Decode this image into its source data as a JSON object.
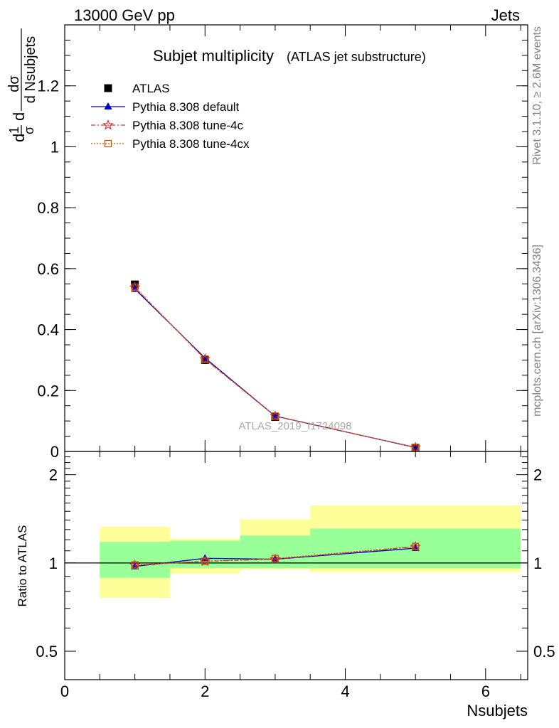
{
  "header": {
    "left": "13000 GeV pp",
    "right": "Jets"
  },
  "side": {
    "top": "Rivet 3.1.10, ≥ 2.6M events",
    "bottom": "mcplots.cern.ch [arXiv:1306.3436]"
  },
  "watermark": "ATLAS_2019_I1724098",
  "chart_data": [
    {
      "type": "line",
      "title": "Subjet multiplicity",
      "subtitle": "(ATLAS jet substructure)",
      "ylabel_top": "dσ",
      "ylabel_bottom": "d Nsubjets",
      "ylabel_prefix_num": "1",
      "ylabel_prefix_den": "σ",
      "ylabel_prefix_d": "d",
      "xlim": [
        0,
        6.6
      ],
      "ylim": [
        0,
        1.4
      ],
      "yticks": [
        "0",
        "0.2",
        "0.4",
        "0.6",
        "0.8",
        "1",
        "1.2"
      ],
      "legend_placement": "top-left",
      "series": [
        {
          "name": "ATLAS",
          "x": [
            1,
            2,
            3,
            5
          ],
          "values": [
            0.548,
            0.3,
            0.113,
            0.012
          ],
          "color": "#000000",
          "marker": "square"
        },
        {
          "name": "Pythia 8.308 default",
          "x": [
            1,
            2,
            3,
            5
          ],
          "values": [
            0.533,
            0.307,
            0.116,
            0.013
          ],
          "color": "#0000cc",
          "marker": "triangle"
        },
        {
          "name": "Pythia 8.308 tune-4c",
          "x": [
            1,
            2,
            3,
            5
          ],
          "values": [
            0.538,
            0.303,
            0.116,
            0.013
          ],
          "color": "#e03030",
          "marker": "star"
        },
        {
          "name": "Pythia 8.308 tune-4cx",
          "x": [
            1,
            2,
            3,
            5
          ],
          "values": [
            0.539,
            0.303,
            0.116,
            0.013
          ],
          "color": "#cc5500",
          "marker": "open-square"
        }
      ]
    },
    {
      "type": "line",
      "ylabel": "Ratio to ATLAS",
      "xlabel": "Nsubjets",
      "xlim": [
        0,
        6.6
      ],
      "ylim": [
        0.4,
        2.4
      ],
      "yscale": "log",
      "yticks": [
        "0.5",
        "1",
        "2"
      ],
      "xticks": [
        "0",
        "2",
        "4",
        "6"
      ],
      "bands": [
        {
          "xlo": 0.5,
          "xhi": 1.5,
          "yellow": [
            0.76,
            1.33
          ],
          "green": [
            0.89,
            1.18
          ]
        },
        {
          "xlo": 1.5,
          "xhi": 2.5,
          "yellow": [
            0.92,
            1.21
          ],
          "green": [
            0.96,
            1.19
          ]
        },
        {
          "xlo": 2.5,
          "xhi": 3.5,
          "yellow": [
            0.95,
            1.41
          ],
          "green": [
            0.96,
            1.24
          ]
        },
        {
          "xlo": 3.5,
          "xhi": 6.5,
          "yellow": [
            0.93,
            1.57
          ],
          "green": [
            0.96,
            1.31
          ]
        }
      ],
      "series": [
        {
          "name": "Pythia 8.308 default",
          "x": [
            1,
            2,
            3,
            5
          ],
          "values": [
            0.973,
            1.037,
            1.03,
            1.123
          ],
          "color": "#0000cc",
          "marker": "triangle"
        },
        {
          "name": "Pythia 8.308 tune-4c",
          "x": [
            1,
            2,
            3,
            5
          ],
          "values": [
            0.982,
            1.013,
            1.03,
            1.135
          ],
          "color": "#e03030",
          "marker": "star"
        },
        {
          "name": "Pythia 8.308 tune-4cx",
          "x": [
            1,
            2,
            3,
            5
          ],
          "values": [
            0.985,
            1.013,
            1.035,
            1.138
          ],
          "color": "#cc5500",
          "marker": "open-square"
        }
      ]
    }
  ]
}
